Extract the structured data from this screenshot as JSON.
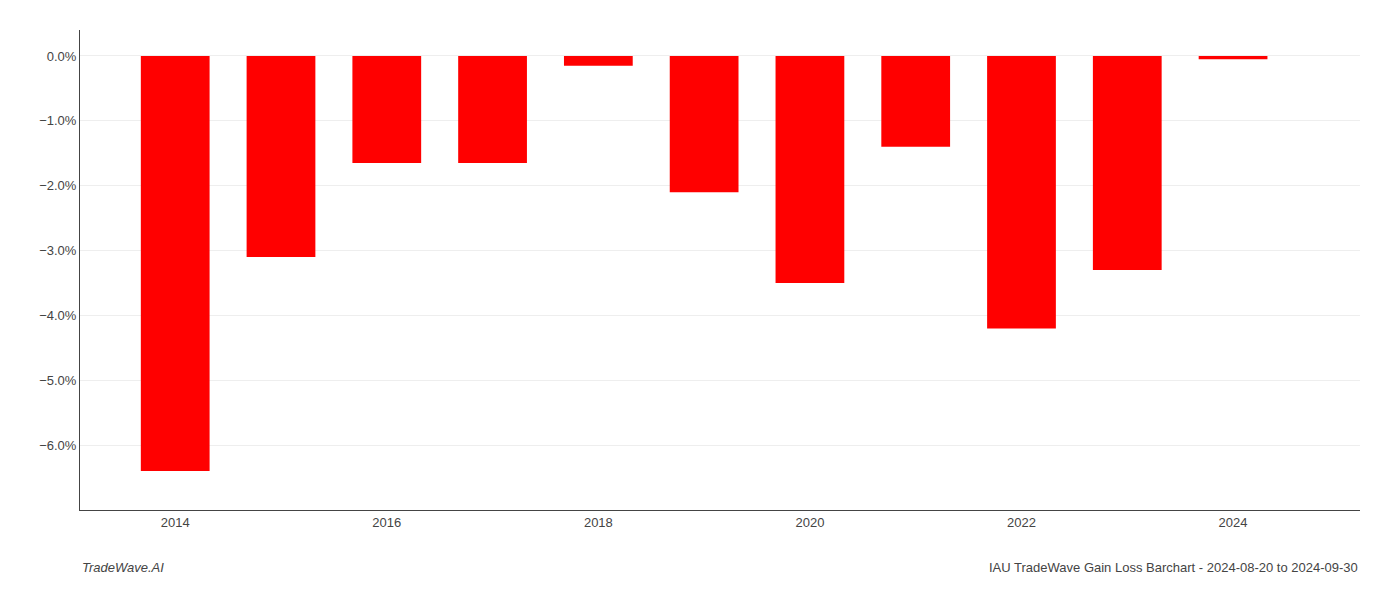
{
  "chart_data": {
    "type": "bar",
    "x": [
      2014,
      2015,
      2016,
      2017,
      2018,
      2019,
      2020,
      2021,
      2022,
      2023,
      2024
    ],
    "values": [
      -6.4,
      -3.1,
      -1.65,
      -1.65,
      -0.15,
      -2.1,
      -3.5,
      -1.4,
      -4.2,
      -3.3,
      -0.05
    ],
    "color": "#ff0000",
    "xlim": [
      2013.1,
      2025.2
    ],
    "xticks": [
      2014,
      2016,
      2018,
      2020,
      2022,
      2024
    ],
    "ylim": [
      -7.0,
      0.4
    ],
    "yticks": [
      {
        "value": 0.0,
        "label": "0.0%"
      },
      {
        "value": -1.0,
        "label": "−1.0%"
      },
      {
        "value": -2.0,
        "label": "−2.0%"
      },
      {
        "value": -3.0,
        "label": "−3.0%"
      },
      {
        "value": -4.0,
        "label": "−4.0%"
      },
      {
        "value": -5.0,
        "label": "−5.0%"
      },
      {
        "value": -6.0,
        "label": "−6.0%"
      }
    ],
    "grid": true,
    "annotations": [
      "TradeWave.AI",
      "IAU TradeWave Gain Loss Barchart - 2024-08-20 to 2024-09-30"
    ]
  }
}
